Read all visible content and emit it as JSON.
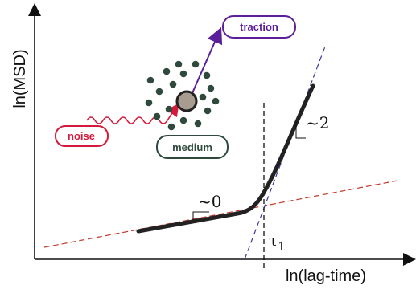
{
  "axes": {
    "ylabel": "ln(MSD)",
    "xlabel": "ln(lag-time)"
  },
  "annotations": {
    "slope_low": "~0",
    "slope_high": "~2",
    "tau_symbol": "τ",
    "tau_subscript": "1"
  },
  "labels": {
    "traction": "traction",
    "noise": "noise",
    "medium": "medium"
  },
  "colors": {
    "traction": "#5b1f9a",
    "noise": "#d41a3a",
    "medium": "#2f4a3c",
    "curve": "#222222",
    "asymptote_low": "#c0392b",
    "asymptote_high": "#3a3aa0",
    "particle": "#a89b8f"
  }
}
